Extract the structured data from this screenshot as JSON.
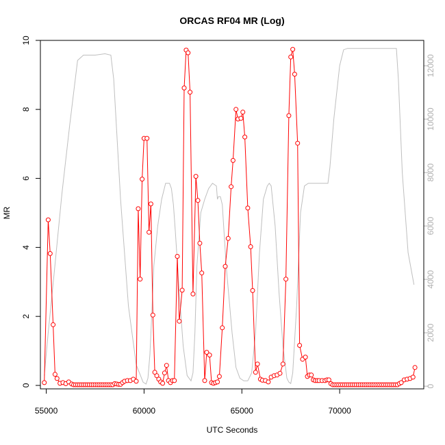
{
  "chart_data": {
    "type": "line",
    "title": "ORCAS RF04 MR (Log)",
    "xlabel": "UTC Seconds",
    "ylabel": "MR",
    "xlim": [
      54700,
      74300
    ],
    "ylim": [
      -0.1,
      10.0
    ],
    "y2lim": [
      -100,
      12950
    ],
    "x_ticks": [
      55000,
      60000,
      65000,
      70000
    ],
    "x_tick_labels": [
      "55000",
      "60000",
      "65000",
      "70000"
    ],
    "y_ticks": [
      0,
      2,
      4,
      6,
      8,
      10
    ],
    "y_tick_labels": [
      "0",
      "2",
      "4",
      "6",
      "8",
      "10"
    ],
    "y2_ticks": [
      0,
      2000,
      4000,
      6000,
      8000,
      10000,
      12000
    ],
    "y2_tick_labels": [
      "0",
      "2000",
      "4000",
      "6000",
      "8000",
      "10000",
      "12000"
    ],
    "grid": false,
    "colors": {
      "mr": "#ff0000",
      "altitude": "#bebebe",
      "axis": "#000000",
      "right_axis": "#b0b0b0"
    },
    "series": [
      {
        "axis": "left",
        "color": "#ff0000",
        "markers": "open-circle",
        "x": [
          54900,
          55100,
          55200,
          55350,
          55450,
          55550,
          55700,
          55850,
          56000,
          56150,
          56300,
          56400,
          56500,
          56600,
          56700,
          56800,
          56900,
          57000,
          57100,
          57200,
          57300,
          57400,
          57500,
          57600,
          57700,
          57800,
          57900,
          58000,
          58100,
          58200,
          58300,
          58400,
          58500,
          58600,
          58700,
          58800,
          58900,
          59000,
          59150,
          59300,
          59450,
          59600,
          59700,
          59800,
          59900,
          60000,
          60150,
          60250,
          60350,
          60450,
          60550,
          60650,
          60750,
          60850,
          60950,
          61050,
          61150,
          61250,
          61350,
          61450,
          61550,
          61700,
          61800,
          61950,
          62050,
          62150,
          62250,
          62350,
          62500,
          62650,
          62750,
          62850,
          62950,
          63100,
          63200,
          63350,
          63450,
          63550,
          63650,
          63750,
          63850,
          64000,
          64150,
          64300,
          64450,
          64550,
          64700,
          64800,
          64950,
          65050,
          65150,
          65300,
          65450,
          65550,
          65700,
          65800,
          65950,
          66050,
          66200,
          66350,
          66500,
          66650,
          66800,
          66950,
          67100,
          67250,
          67400,
          67500,
          67600,
          67700,
          67850,
          67950,
          68100,
          68250,
          68350,
          68450,
          68550,
          68650,
          68750,
          68850,
          68950,
          69100,
          69250,
          69350,
          69450,
          69550,
          69650,
          69750,
          69850,
          69950,
          70050,
          70150,
          70250,
          70350,
          70450,
          70550,
          70650,
          70750,
          70850,
          70950,
          71050,
          71150,
          71250,
          71350,
          71450,
          71550,
          71650,
          71750,
          71850,
          71950,
          72050,
          72150,
          72250,
          72350,
          72450,
          72550,
          72650,
          72750,
          72850,
          72950,
          73050,
          73150,
          73300,
          73450,
          73600,
          73750,
          73850
        ],
        "values": [
          0.08,
          4.8,
          3.82,
          1.76,
          0.32,
          0.2,
          0.06,
          0.08,
          0.05,
          0.1,
          0.04,
          0.02,
          0.02,
          0.02,
          0.02,
          0.02,
          0.02,
          0.02,
          0.02,
          0.02,
          0.02,
          0.02,
          0.02,
          0.02,
          0.02,
          0.02,
          0.02,
          0.02,
          0.02,
          0.02,
          0.02,
          0.02,
          0.05,
          0.04,
          0.03,
          0.03,
          0.08,
          0.12,
          0.14,
          0.14,
          0.18,
          0.12,
          5.12,
          3.08,
          5.98,
          7.16,
          7.16,
          4.44,
          5.26,
          2.04,
          0.38,
          0.28,
          0.18,
          0.1,
          0.06,
          0.36,
          0.58,
          0.14,
          0.08,
          0.14,
          0.14,
          3.74,
          1.86,
          2.76,
          8.62,
          9.72,
          9.64,
          8.5,
          2.65,
          6.06,
          5.36,
          4.12,
          3.26,
          0.14,
          0.96,
          0.88,
          0.08,
          0.06,
          0.08,
          0.1,
          0.26,
          1.67,
          3.45,
          4.26,
          5.76,
          6.52,
          8.0,
          7.72,
          7.74,
          7.92,
          7.2,
          5.14,
          4.02,
          2.75,
          0.38,
          0.62,
          0.18,
          0.15,
          0.14,
          0.1,
          0.24,
          0.28,
          0.3,
          0.35,
          0.62,
          3.08,
          7.82,
          9.52,
          9.74,
          9.02,
          7.02,
          1.16,
          0.76,
          0.82,
          0.26,
          0.3,
          0.3,
          0.16,
          0.14,
          0.14,
          0.14,
          0.14,
          0.14,
          0.16,
          0.16,
          0.05,
          0.02,
          0.02,
          0.02,
          0.02,
          0.02,
          0.02,
          0.02,
          0.02,
          0.02,
          0.02,
          0.02,
          0.02,
          0.02,
          0.02,
          0.02,
          0.02,
          0.02,
          0.02,
          0.02,
          0.02,
          0.02,
          0.02,
          0.02,
          0.02,
          0.02,
          0.02,
          0.02,
          0.02,
          0.02,
          0.02,
          0.02,
          0.02,
          0.02,
          0.02,
          0.05,
          0.08,
          0.16,
          0.18,
          0.2,
          0.24,
          0.52
        ]
      },
      {
        "axis": "right",
        "color": "#bebebe",
        "markers": "none",
        "x": [
          54900,
          55100,
          55400,
          55800,
          56200,
          56600,
          56900,
          57000,
          57500,
          58000,
          58300,
          58450,
          58800,
          59200,
          59600,
          59950,
          60100,
          60200,
          60300,
          60400,
          60500,
          60700,
          60900,
          61100,
          61300,
          61400,
          61500,
          61600,
          61800,
          62000,
          62200,
          62400,
          62500,
          62600,
          62700,
          62900,
          63100,
          63300,
          63500,
          63700,
          63750,
          63800,
          63900,
          64000,
          64200,
          64500,
          64700,
          64900,
          65100,
          65300,
          65500,
          65700,
          65900,
          66100,
          66300,
          66400,
          66500,
          66700,
          66900,
          67100,
          67300,
          67400,
          67500,
          67600,
          67800,
          68000,
          68200,
          68400,
          68600,
          69000,
          69400,
          69500,
          69700,
          70000,
          70200,
          70400,
          70500,
          71000,
          71500,
          72000,
          72500,
          72900,
          73000,
          73200,
          73500,
          73800
        ],
        "values": [
          400,
          2000,
          4200,
          7200,
          9800,
          12200,
          12400,
          12400,
          12400,
          12450,
          12400,
          11500,
          7000,
          3000,
          800,
          150,
          80,
          300,
          1200,
          2800,
          4500,
          6000,
          7000,
          7600,
          7600,
          7400,
          6800,
          5800,
          3500,
          1500,
          400,
          200,
          500,
          2000,
          4500,
          6500,
          7000,
          7400,
          7600,
          7500,
          7000,
          7100,
          7100,
          6800,
          4500,
          2000,
          700,
          300,
          200,
          200,
          500,
          2000,
          5000,
          7000,
          7500,
          7600,
          7500,
          6000,
          3500,
          1500,
          300,
          150,
          100,
          500,
          3000,
          6500,
          7500,
          7600,
          7600,
          7600,
          7600,
          8200,
          10000,
          12000,
          12600,
          12650,
          12650,
          12650,
          12650,
          12650,
          12650,
          12650,
          11500,
          8000,
          5000,
          3800
        ]
      }
    ]
  }
}
